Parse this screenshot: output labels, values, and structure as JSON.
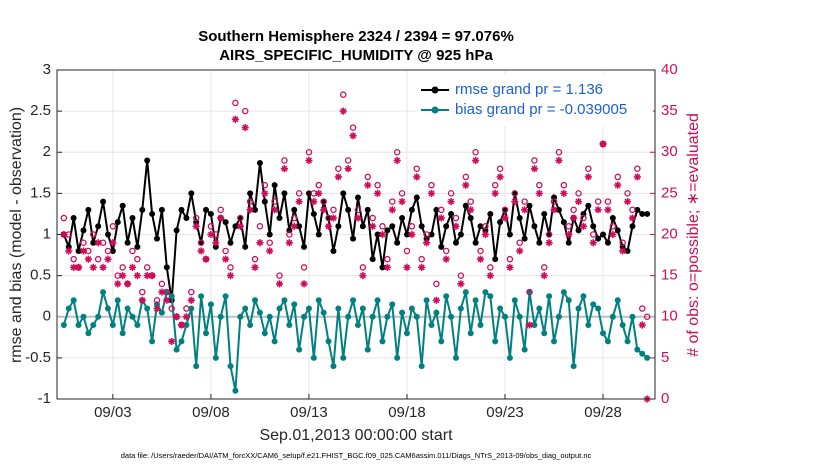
{
  "chart_data": {
    "type": "line",
    "title": "Southern Hemisphere 2324 / 2394 = 97.076%",
    "subtitle": "AIRS_SPECIFIC_HUMIDITY @ 925 hPa",
    "xlabel": "Sep.01,2013 00:00:00 start",
    "ylabel": "rmse and bias (model - observation)",
    "y2label": "# of obs: o=possible; ∗=evaluated",
    "footnote": "data file: /Users/raeder/DAI/ATM_forcXX/CAM6_setup/f.e21.FHIST_BGC.f09_025.CAM6assim.011/Diags_NTrS_2013-09/obs_diag_output.nc",
    "xlim": [
      0.15,
      30.65
    ],
    "xticks": [
      {
        "value": 3,
        "label": "09/03"
      },
      {
        "value": 8,
        "label": "09/08"
      },
      {
        "value": 13,
        "label": "09/13"
      },
      {
        "value": 18,
        "label": "09/18"
      },
      {
        "value": 23,
        "label": "09/23"
      },
      {
        "value": 28,
        "label": "09/28"
      }
    ],
    "ylim": [
      -1,
      3
    ],
    "yticks": [
      -1,
      -0.5,
      0,
      0.5,
      1,
      1.5,
      2,
      2.5,
      3
    ],
    "y2lim": [
      0,
      40
    ],
    "y2ticks": [
      0,
      5,
      10,
      15,
      20,
      25,
      30,
      35,
      40
    ],
    "grid": true,
    "legend": "upper right",
    "x": [
      0.5,
      0.75,
      1,
      1.25,
      1.5,
      1.75,
      2,
      2.25,
      2.5,
      2.75,
      3,
      3.25,
      3.5,
      3.75,
      4,
      4.25,
      4.5,
      4.75,
      5,
      5.25,
      5.5,
      5.75,
      6,
      6.25,
      6.5,
      6.75,
      7,
      7.25,
      7.5,
      7.75,
      8,
      8.25,
      8.5,
      8.75,
      9,
      9.25,
      9.5,
      9.75,
      10,
      10.25,
      10.5,
      10.75,
      11,
      11.25,
      11.5,
      11.75,
      12,
      12.25,
      12.5,
      12.75,
      13,
      13.25,
      13.5,
      13.75,
      14,
      14.25,
      14.5,
      14.75,
      15,
      15.25,
      15.5,
      15.75,
      16,
      16.25,
      16.5,
      16.75,
      17,
      17.25,
      17.5,
      17.75,
      18,
      18.25,
      18.5,
      18.75,
      19,
      19.25,
      19.5,
      19.75,
      20,
      20.25,
      20.5,
      20.75,
      21,
      21.25,
      21.5,
      21.75,
      22,
      22.25,
      22.5,
      22.75,
      23,
      23.25,
      23.5,
      23.75,
      24,
      24.25,
      24.5,
      24.75,
      25,
      25.25,
      25.5,
      25.75,
      26,
      26.25,
      26.5,
      26.75,
      27,
      27.25,
      27.5,
      27.75,
      28,
      28.25,
      28.5,
      28.75,
      29,
      29.25,
      29.5,
      29.75,
      30,
      30.25
    ],
    "series": [
      {
        "name": "rmse grand pr = 1.136",
        "color": "#000000",
        "marker": "filled-circle",
        "values": [
          1.0,
          0.85,
          1.2,
          0.8,
          1.05,
          1.3,
          0.9,
          1.1,
          1.4,
          1.0,
          0.8,
          1.15,
          1.35,
          0.9,
          1.2,
          0.85,
          1.3,
          1.9,
          1.25,
          0.95,
          1.3,
          0.6,
          0.2,
          1.05,
          1.3,
          1.2,
          1.5,
          1.15,
          0.9,
          1.3,
          1.25,
          0.85,
          1.2,
          1.15,
          0.9,
          1.1,
          1.2,
          0.85,
          1.5,
          1.3,
          1.87,
          1.4,
          1.0,
          1.6,
          1.2,
          1.5,
          1.05,
          1.3,
          1.1,
          0.85,
          1.5,
          1.25,
          1.0,
          1.4,
          1.2,
          0.8,
          1.1,
          1.5,
          1.3,
          0.95,
          1.45,
          1.1,
          1.3,
          0.7,
          1.0,
          0.6,
          1.05,
          1.1,
          0.9,
          1.2,
          1.0,
          1.3,
          1.45,
          1.1,
          0.95,
          1.0,
          1.3,
          0.85,
          1.1,
          1.25,
          0.9,
          1.0,
          1.35,
          1.2,
          0.9,
          1.1,
          1.05,
          1.25,
          0.7,
          1.15,
          1.3,
          1.0,
          1.5,
          1.2,
          0.95,
          1.35,
          1.1,
          0.9,
          1.25,
          1.0,
          1.45,
          1.3,
          1.15,
          0.9,
          1.2,
          1.05,
          1.25,
          1.35,
          1.1,
          0.95,
          1.0,
          0.9,
          1.2,
          1.05,
          0.85,
          0.8,
          1.1,
          1.3,
          1.25,
          1.25
        ]
      },
      {
        "name": "bias grand pr = -0.039005",
        "color": "#008080",
        "marker": "filled-circle",
        "values": [
          -0.1,
          0.1,
          0.2,
          -0.1,
          0.0,
          -0.2,
          -0.1,
          0.0,
          0.3,
          0.1,
          -0.1,
          0.2,
          -0.2,
          0.1,
          0.0,
          -0.1,
          0.2,
          0.1,
          -0.3,
          0.15,
          0.05,
          0.3,
          0.25,
          -0.4,
          -0.3,
          -0.1,
          0.1,
          -0.6,
          0.25,
          -0.2,
          0.15,
          -0.5,
          0.0,
          0.25,
          -0.6,
          -0.9,
          0.0,
          0.1,
          -0.1,
          0.2,
          0.05,
          -0.2,
          0.0,
          -0.3,
          0.1,
          0.2,
          -0.1,
          0.15,
          -0.4,
          0.0,
          0.1,
          -0.5,
          0.2,
          0.05,
          -0.3,
          -0.6,
          0.1,
          -0.5,
          0.0,
          0.2,
          -0.1,
          0.1,
          -0.4,
          0.0,
          0.2,
          -0.3,
          0.0,
          0.15,
          -0.5,
          0.05,
          -0.2,
          0.1,
          0.0,
          -0.6,
          0.2,
          -0.1,
          0.05,
          -0.3,
          0.25,
          0.0,
          -0.5,
          0.1,
          0.3,
          -0.2,
          0.2,
          -0.1,
          0.3,
          0.25,
          -0.3,
          0.1,
          0.0,
          -0.5,
          0.2,
          0.0,
          -0.4,
          0.3,
          -0.1,
          0.1,
          -0.2,
          0.25,
          -0.3,
          0.0,
          0.3,
          0.2,
          -0.6,
          0.1,
          0.25,
          -0.1,
          0.15,
          0.1,
          -0.2,
          -0.3,
          0.0,
          0.2,
          -0.1,
          -0.3,
          0.0,
          -0.4,
          -0.45,
          -0.5
        ]
      },
      {
        "color": "#cc0e5a",
        "marker": "o",
        "axis": "y2",
        "values": [
          22,
          20,
          17,
          16,
          19,
          18,
          20,
          17,
          19,
          18,
          21,
          15,
          16,
          14,
          18,
          17,
          13,
          16,
          15,
          12,
          14,
          13,
          11,
          10,
          9,
          11,
          13,
          22,
          19,
          17,
          21,
          20,
          23,
          18,
          16,
          36,
          22,
          35,
          24,
          17,
          21,
          26,
          19,
          24,
          15,
          29,
          20,
          22,
          25,
          16,
          30,
          25,
          26,
          24,
          22,
          23,
          28,
          37,
          29,
          33,
          23,
          16,
          27,
          22,
          26,
          21,
          17,
          24,
          30,
          25,
          18,
          21,
          28,
          17,
          20,
          26,
          14,
          23,
          18,
          25,
          22,
          15,
          27,
          24,
          30,
          18,
          21,
          16,
          26,
          28,
          23,
          17,
          25,
          19,
          24,
          13,
          29,
          26,
          16,
          20,
          24,
          30,
          26,
          21,
          23,
          25,
          22,
          28,
          20,
          24,
          31,
          24,
          21,
          27,
          19,
          25,
          23,
          28,
          11,
          10
        ]
      },
      {
        "color": "#cc0e5a",
        "marker": "*",
        "axis": "y2",
        "values": [
          20,
          18,
          16,
          16,
          18,
          17,
          16,
          19,
          16,
          17,
          19,
          14,
          15,
          14,
          16,
          15,
          12,
          15,
          15,
          11,
          13,
          12,
          7,
          10,
          9,
          10,
          12,
          21,
          18,
          17,
          20,
          19,
          22,
          17,
          15,
          34,
          21,
          33,
          23,
          16,
          19,
          25,
          18,
          23,
          14,
          28,
          19,
          21,
          24,
          14,
          29,
          24,
          25,
          23,
          21,
          22,
          27,
          35,
          28,
          32,
          22,
          15,
          26,
          21,
          25,
          20,
          16,
          23,
          29,
          24,
          16,
          20,
          27,
          16,
          19,
          25,
          12,
          22,
          17,
          24,
          21,
          14,
          26,
          23,
          29,
          17,
          20,
          15,
          25,
          27,
          22,
          16,
          24,
          18,
          23,
          9,
          28,
          25,
          15,
          19,
          23,
          29,
          25,
          20,
          22,
          24,
          21,
          27,
          19,
          23,
          31,
          23,
          20,
          26,
          18,
          24,
          22,
          27,
          9,
          0
        ]
      }
    ]
  }
}
